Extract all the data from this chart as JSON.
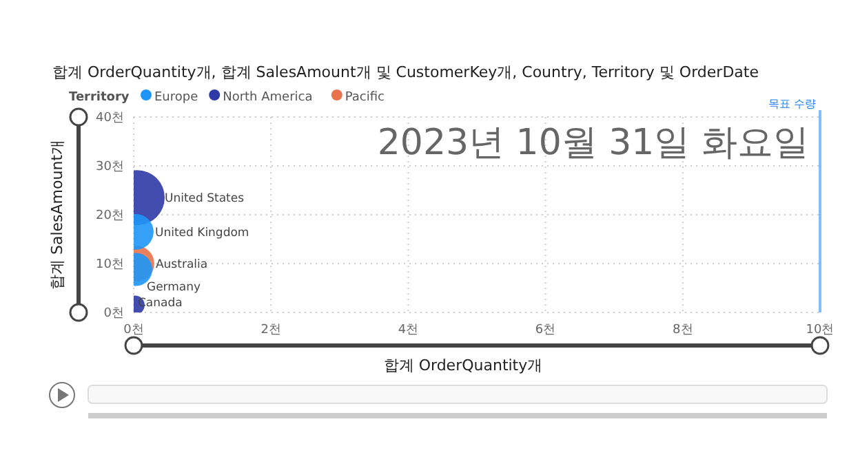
{
  "chart_data": {
    "type": "bubble",
    "title": "합계 OrderQuantity개, 합계 SalesAmount개 및 CustomerKey개, Country, Territory 및 OrderDate",
    "legend_title": "Territory",
    "xlabel": "합계 OrderQuantity개",
    "ylabel": "합계 SalesAmount개",
    "series": [
      {
        "name": "Europe",
        "color": "#1e96f7",
        "x": [
          0.03,
          0.03
        ],
        "values": [
          16.5,
          8.8
        ],
        "sizes": [
          0.42,
          0.36
        ]
      },
      {
        "name": "North America",
        "color": "#2e3aa6",
        "x": [
          0.05,
          0.02
        ],
        "values": [
          23.5,
          1.5
        ],
        "sizes": [
          1,
          0.12
        ]
      },
      {
        "name": "Pacific",
        "color": "#e8734a",
        "x": [
          0.04
        ],
        "values": [
          10
        ],
        "sizes": [
          0.42
        ]
      }
    ],
    "xlim": [
      0,
      10
    ],
    "xticks": [
      {
        "value": 0,
        "label": "0천"
      },
      {
        "value": 2,
        "label": "2천"
      },
      {
        "value": 4,
        "label": "4천"
      },
      {
        "value": 6,
        "label": "6천"
      },
      {
        "value": 8,
        "label": "8천"
      },
      {
        "value": 10,
        "label": "10천"
      }
    ],
    "ylim": [
      0,
      40
    ],
    "yticks": [
      {
        "value": 0,
        "label": "0천"
      },
      {
        "value": 10,
        "label": "10천"
      },
      {
        "value": 20,
        "label": "20천"
      },
      {
        "value": 30,
        "label": "30천"
      },
      {
        "value": 40,
        "label": "40천"
      }
    ],
    "ref_lines": [
      {
        "axis": "x",
        "value": 10,
        "label": "목표 수량",
        "color": "#7fbfff"
      }
    ],
    "annotations": [
      "2023년 10월 31일 화요일",
      {
        "text": "United States",
        "x": 0.05,
        "y": 23.5
      },
      {
        "text": "United Kingdom",
        "x": 0.03,
        "y": 16.5
      },
      {
        "text": "Australia",
        "x": 0.04,
        "y": 10
      },
      {
        "text": "Germany",
        "x": 0.03,
        "y": 8.8
      },
      {
        "text": "Canada",
        "x": 0.02,
        "y": 1.5
      }
    ],
    "grid": true,
    "legend": "top left",
    "marker": "circle"
  }
}
